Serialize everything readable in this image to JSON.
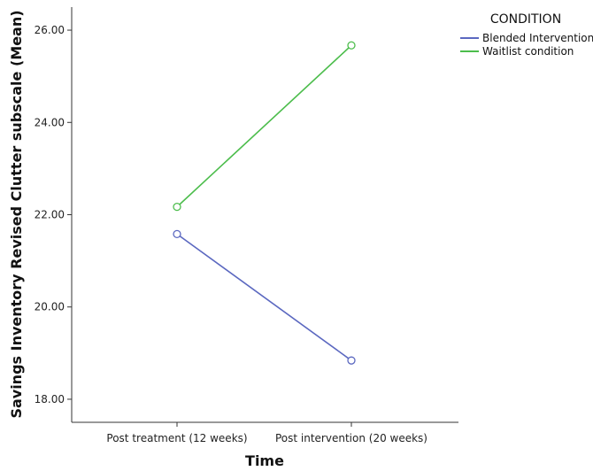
{
  "chart_data": {
    "type": "line",
    "xlabel": "Time",
    "ylabel": "Savings Inventory Revised Clutter subscale (Mean)",
    "categories": [
      "Post treatment (12 weeks)",
      "Post intervention (20 weeks)"
    ],
    "ylim": [
      17.5,
      26.5
    ],
    "yticks": [
      "18.00",
      "20.00",
      "22.00",
      "24.00",
      "26.00"
    ],
    "legend_title": "CONDITION",
    "legend_position": "top-right",
    "grid": false,
    "series": [
      {
        "name": "Blended Intervention",
        "values": [
          21.58,
          18.84
        ],
        "color": "#5b68c0"
      },
      {
        "name": "Waitlist condition",
        "values": [
          22.17,
          25.67
        ],
        "color": "#4cbd4c"
      }
    ]
  }
}
